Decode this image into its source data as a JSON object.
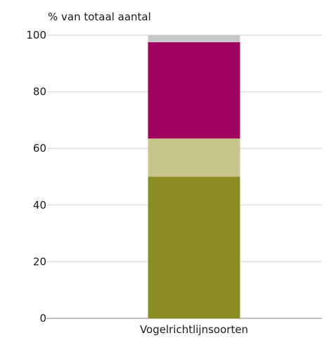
{
  "chart_data": {
    "type": "bar",
    "stacked": true,
    "ylabel": "% van totaal aantal",
    "xlabel": "",
    "categories": [
      "Vogelrichtlijnsoorten"
    ],
    "ylim": [
      0,
      100
    ],
    "yticks": [
      0,
      20,
      40,
      60,
      80,
      100
    ],
    "grid": true,
    "legend": "none",
    "series": [
      {
        "values": [
          50
        ],
        "color": "#8b8c22"
      },
      {
        "values": [
          13.5
        ],
        "color": "#c5c58c"
      },
      {
        "values": [
          34
        ],
        "color": "#a0005f"
      },
      {
        "values": [
          2.5
        ],
        "color": "#c8c8c8"
      }
    ]
  }
}
